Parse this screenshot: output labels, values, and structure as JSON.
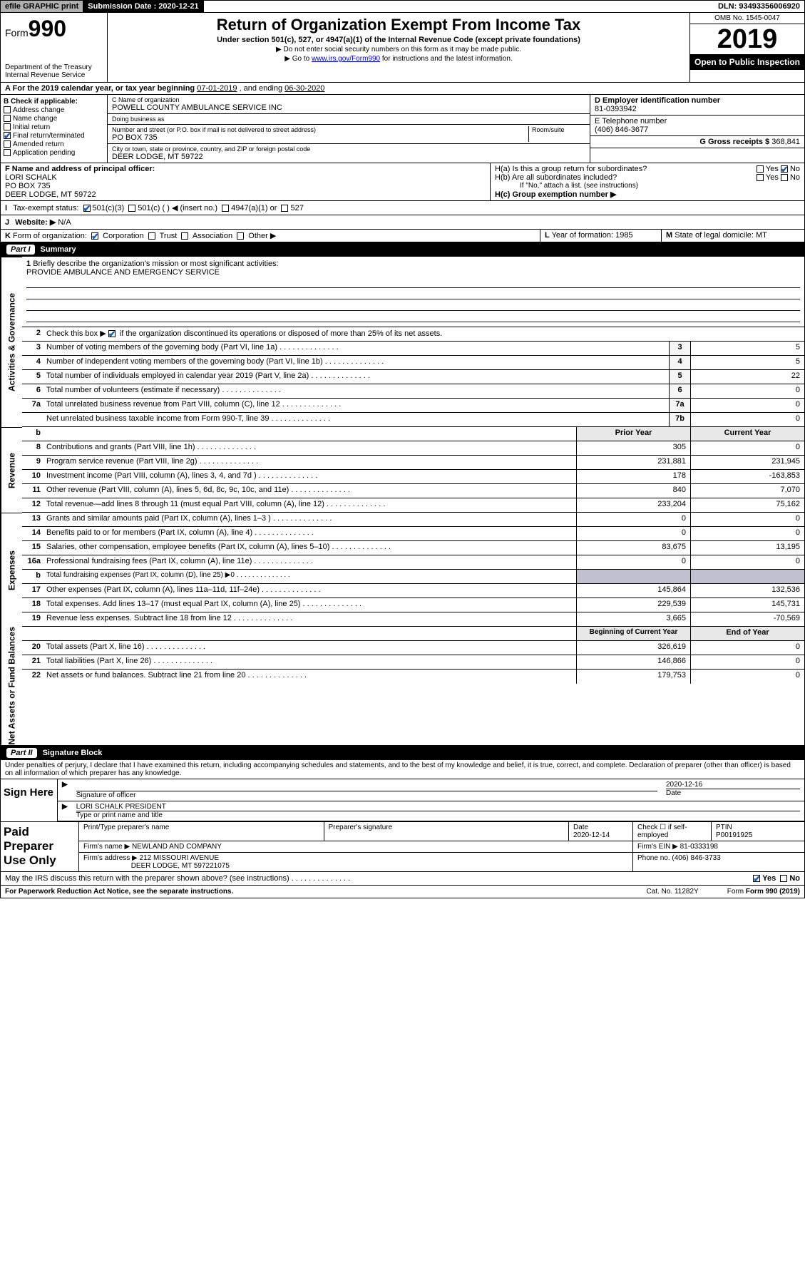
{
  "top": {
    "efile": "efile GRAPHIC print",
    "sub_label": "Submission Date : 2020-12-21",
    "dln": "DLN: 93493356006920"
  },
  "header": {
    "form_word": "Form",
    "form_num": "990",
    "title": "Return of Organization Exempt From Income Tax",
    "subtitle": "Under section 501(c), 527, or 4947(a)(1) of the Internal Revenue Code (except private foundations)",
    "note1": "▶ Do not enter social security numbers on this form as it may be made public.",
    "note2_pre": "▶ Go to ",
    "note2_link": "www.irs.gov/Form990",
    "note2_post": " for instructions and the latest information.",
    "dept": "Department of the Treasury\nInternal Revenue Service",
    "omb": "OMB No. 1545-0047",
    "year": "2019",
    "open": "Open to Public Inspection"
  },
  "lineA": {
    "text_pre": "A For the 2019 calendar year, or tax year beginning ",
    "begin": "07-01-2019",
    "mid": " , and ending ",
    "end": "06-30-2020"
  },
  "boxB": {
    "label": "B Check if applicable:",
    "items": [
      "Address change",
      "Name change",
      "Initial return",
      "Final return/terminated",
      "Amended return",
      "Application pending"
    ],
    "checked": [
      false,
      false,
      false,
      true,
      false,
      false
    ]
  },
  "boxC": {
    "name_lbl": "C Name of organization",
    "name": "POWELL COUNTY AMBULANCE SERVICE INC",
    "dba_lbl": "Doing business as",
    "dba": "",
    "addr_lbl": "Number and street (or P.O. box if mail is not delivered to street address)",
    "room_lbl": "Room/suite",
    "addr": "PO BOX 735",
    "city_lbl": "City or town, state or province, country, and ZIP or foreign postal code",
    "city": "DEER LODGE, MT  59722"
  },
  "boxD": {
    "lbl": "D Employer identification number",
    "val": "81-0393942"
  },
  "boxE": {
    "lbl": "E Telephone number",
    "val": "(406) 846-3677"
  },
  "boxG": {
    "lbl": "G Gross receipts $",
    "val": "368,841"
  },
  "boxF": {
    "lbl": "F  Name and address of principal officer:",
    "name": "LORI SCHALK",
    "addr": "PO BOX 735",
    "city": "DEER LODGE, MT  59722"
  },
  "boxH": {
    "a_lbl": "H(a)  Is this a group return for subordinates?",
    "a_yes": "Yes",
    "a_no": "No",
    "a_checked": "no",
    "b_lbl": "H(b)  Are all subordinates included?",
    "b_yes": "Yes",
    "b_no": "No",
    "b_note": "If \"No,\" attach a list. (see instructions)",
    "c_lbl": "H(c)  Group exemption number ▶"
  },
  "boxI": {
    "lbl": "I",
    "text": "Tax-exempt status:",
    "opts": [
      "501(c)(3)",
      "501(c) (   ) ◀ (insert no.)",
      "4947(a)(1) or",
      "527"
    ],
    "checked": 0
  },
  "boxJ": {
    "lbl": "J",
    "text": "Website: ▶",
    "val": "N/A"
  },
  "boxK": {
    "lbl": "K",
    "text": "Form of organization:",
    "opts": [
      "Corporation",
      "Trust",
      "Association",
      "Other ▶"
    ],
    "checked": 0
  },
  "boxL": {
    "lbl": "L",
    "text": "Year of formation:",
    "val": "1985"
  },
  "boxM": {
    "lbl": "M",
    "text": "State of legal domicile:",
    "val": "MT"
  },
  "partI": {
    "num": "Part I",
    "title": "Summary"
  },
  "mission": {
    "num": "1",
    "lbl": "Briefly describe the organization's mission or most significant activities:",
    "text": "PROVIDE AMBULANCE AND EMERGENCY SERVICE"
  },
  "line2": {
    "num": "2",
    "text": "Check this box ▶",
    "post": " if the organization discontinued its operations or disposed of more than 25% of its net assets."
  },
  "sideLabels": {
    "gov": "Activities & Governance",
    "rev": "Revenue",
    "exp": "Expenses",
    "net": "Net Assets or Fund Balances"
  },
  "govRows": [
    {
      "n": "3",
      "d": "Number of voting members of the governing body (Part VI, line 1a)",
      "b": "3",
      "v": "5"
    },
    {
      "n": "4",
      "d": "Number of independent voting members of the governing body (Part VI, line 1b)",
      "b": "4",
      "v": "5"
    },
    {
      "n": "5",
      "d": "Total number of individuals employed in calendar year 2019 (Part V, line 2a)",
      "b": "5",
      "v": "22"
    },
    {
      "n": "6",
      "d": "Total number of volunteers (estimate if necessary)",
      "b": "6",
      "v": "0"
    },
    {
      "n": "7a",
      "d": "Total unrelated business revenue from Part VIII, column (C), line 12",
      "b": "7a",
      "v": "0"
    },
    {
      "n": "",
      "d": "Net unrelated business taxable income from Form 990-T, line 39",
      "b": "7b",
      "v": "0"
    }
  ],
  "colHdr": {
    "n": "b",
    "prior": "Prior Year",
    "curr": "Current Year"
  },
  "revRows": [
    {
      "n": "8",
      "d": "Contributions and grants (Part VIII, line 1h)",
      "p": "305",
      "c": "0"
    },
    {
      "n": "9",
      "d": "Program service revenue (Part VIII, line 2g)",
      "p": "231,881",
      "c": "231,945"
    },
    {
      "n": "10",
      "d": "Investment income (Part VIII, column (A), lines 3, 4, and 7d )",
      "p": "178",
      "c": "-163,853"
    },
    {
      "n": "11",
      "d": "Other revenue (Part VIII, column (A), lines 5, 6d, 8c, 9c, 10c, and 11e)",
      "p": "840",
      "c": "7,070"
    },
    {
      "n": "12",
      "d": "Total revenue—add lines 8 through 11 (must equal Part VIII, column (A), line 12)",
      "p": "233,204",
      "c": "75,162"
    }
  ],
  "expRows": [
    {
      "n": "13",
      "d": "Grants and similar amounts paid (Part IX, column (A), lines 1–3 )",
      "p": "0",
      "c": "0"
    },
    {
      "n": "14",
      "d": "Benefits paid to or for members (Part IX, column (A), line 4)",
      "p": "0",
      "c": "0"
    },
    {
      "n": "15",
      "d": "Salaries, other compensation, employee benefits (Part IX, column (A), lines 5–10)",
      "p": "83,675",
      "c": "13,195"
    },
    {
      "n": "16a",
      "d": "Professional fundraising fees (Part IX, column (A), line 11e)",
      "p": "0",
      "c": "0"
    },
    {
      "n": "b",
      "d": "Total fundraising expenses (Part IX, column (D), line 25) ▶0",
      "p": "",
      "c": "",
      "shade": true
    },
    {
      "n": "17",
      "d": "Other expenses (Part IX, column (A), lines 11a–11d, 11f–24e)",
      "p": "145,864",
      "c": "132,536"
    },
    {
      "n": "18",
      "d": "Total expenses. Add lines 13–17 (must equal Part IX, column (A), line 25)",
      "p": "229,539",
      "c": "145,731"
    },
    {
      "n": "19",
      "d": "Revenue less expenses. Subtract line 18 from line 12",
      "p": "3,665",
      "c": "-70,569"
    }
  ],
  "netHdr": {
    "prior": "Beginning of Current Year",
    "curr": "End of Year"
  },
  "netRows": [
    {
      "n": "20",
      "d": "Total assets (Part X, line 16)",
      "p": "326,619",
      "c": "0"
    },
    {
      "n": "21",
      "d": "Total liabilities (Part X, line 26)",
      "p": "146,866",
      "c": "0"
    },
    {
      "n": "22",
      "d": "Net assets or fund balances. Subtract line 21 from line 20",
      "p": "179,753",
      "c": "0"
    }
  ],
  "partII": {
    "num": "Part II",
    "title": "Signature Block"
  },
  "penalties": "Under penalties of perjury, I declare that I have examined this return, including accompanying schedules and statements, and to the best of my knowledge and belief, it is true, correct, and complete. Declaration of preparer (other than officer) is based on all information of which preparer has any knowledge.",
  "sign": {
    "label": "Sign Here",
    "sig_lbl": "Signature of officer",
    "date": "2020-12-16",
    "date_lbl": "Date",
    "name": "LORI SCHALK  PRESIDENT",
    "name_lbl": "Type or print name and title"
  },
  "paid": {
    "label": "Paid Preparer Use Only",
    "h1": "Print/Type preparer's name",
    "h2": "Preparer's signature",
    "h3": "Date",
    "h3v": "2020-12-14",
    "h4": "Check ☐ if self-employed",
    "h5": "PTIN",
    "h5v": "P00191925",
    "firm_lbl": "Firm's name    ▶",
    "firm": "NEWLAND AND COMPANY",
    "ein_lbl": "Firm's EIN ▶",
    "ein": "81-0333198",
    "addr_lbl": "Firm's address ▶",
    "addr1": "212 MISSOURI AVENUE",
    "addr2": "DEER LODGE, MT  597221075",
    "phone_lbl": "Phone no.",
    "phone": "(406) 846-3733"
  },
  "discuss": {
    "text": "May the IRS discuss this return with the preparer shown above? (see instructions)",
    "yes": "Yes",
    "no": "No",
    "checked": "yes"
  },
  "footer": {
    "f1": "For Paperwork Reduction Act Notice, see the separate instructions.",
    "f2": "Cat. No. 11282Y",
    "f3": "Form 990 (2019)"
  },
  "colors": {
    "link": "#0000cc",
    "check": "#1a5fb4",
    "shade": "#c0c0d0",
    "hdr_bg": "#e8e8e8"
  }
}
